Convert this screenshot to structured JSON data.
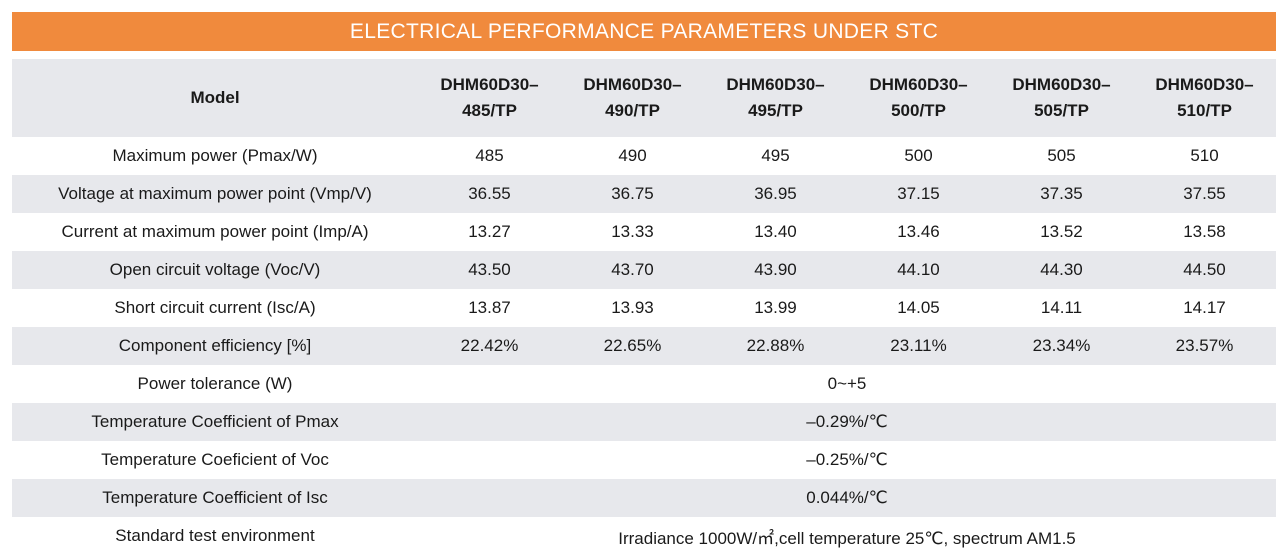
{
  "title": "ELECTRICAL PERFORMANCE PARAMETERS UNDER STC",
  "header": {
    "label": "Model",
    "models": [
      {
        "line1": "DHM60D30–",
        "line2": "485/TP"
      },
      {
        "line1": "DHM60D30–",
        "line2": "490/TP"
      },
      {
        "line1": "DHM60D30–",
        "line2": "495/TP"
      },
      {
        "line1": "DHM60D30–",
        "line2": "500/TP"
      },
      {
        "line1": "DHM60D30–",
        "line2": "505/TP"
      },
      {
        "line1": "DHM60D30–",
        "line2": "510/TP"
      }
    ]
  },
  "rows": [
    {
      "label": "Maximum power (Pmax/W)",
      "values": [
        "485",
        "490",
        "495",
        "500",
        "505",
        "510"
      ]
    },
    {
      "label": "Voltage at maximum power point (Vmp/V)",
      "values": [
        "36.55",
        "36.75",
        "36.95",
        "37.15",
        "37.35",
        "37.55"
      ]
    },
    {
      "label": "Current at maximum power point (Imp/A)",
      "values": [
        "13.27",
        "13.33",
        "13.40",
        "13.46",
        "13.52",
        "13.58"
      ]
    },
    {
      "label": "Open circuit voltage (Voc/V)",
      "values": [
        "43.50",
        "43.70",
        "43.90",
        "44.10",
        "44.30",
        "44.50"
      ]
    },
    {
      "label": "Short circuit current (Isc/A)",
      "values": [
        "13.87",
        "13.93",
        "13.99",
        "14.05",
        "14.11",
        "14.17"
      ]
    },
    {
      "label": "Component efficiency [%]",
      "values": [
        "22.42%",
        "22.65%",
        "22.88%",
        "23.11%",
        "23.34%",
        "23.57%"
      ]
    }
  ],
  "merged_rows": [
    {
      "label": "Power tolerance (W)",
      "value": "0~+5"
    },
    {
      "label": "Temperature Coefficient of Pmax",
      "value": "–0.29%/℃"
    },
    {
      "label": "Temperature Coeficient of Voc",
      "value": "–0.25%/℃"
    },
    {
      "label": "Temperature Coefficient of Isc",
      "value": "0.044%/℃"
    },
    {
      "label": "Standard test environment",
      "value": "Irradiance 1000W/㎡,cell temperature 25℃, spectrum AM1.5"
    }
  ],
  "colors": {
    "title_bar": "#f08a3d",
    "row_shade": "#e7e8ec",
    "title_text": "#ffffff"
  }
}
